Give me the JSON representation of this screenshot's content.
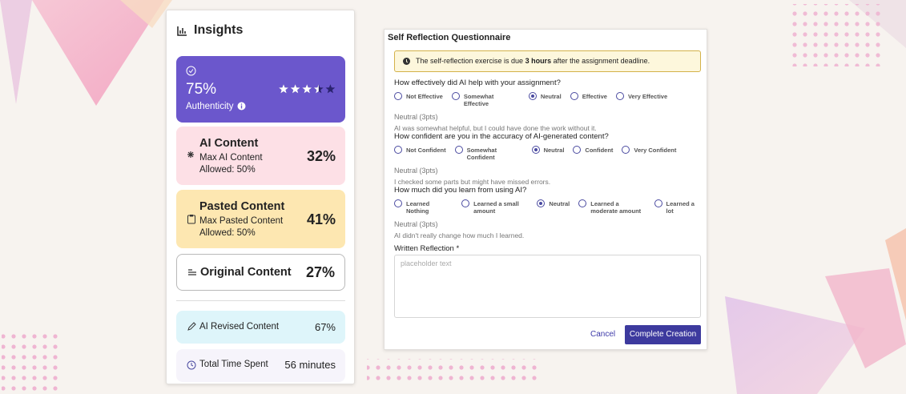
{
  "insights": {
    "title": "Insights",
    "authenticity": {
      "value": "75%",
      "label": "Authenticity",
      "rating": 3.5,
      "rating_max": 5
    },
    "ai_content": {
      "title": "AI Content",
      "note": "Max AI Content Allowed: 50%",
      "value": "32%"
    },
    "pasted_content": {
      "title": "Pasted Content",
      "note": "Max Pasted Content Allowed: 50%",
      "value": "41%"
    },
    "original_content": {
      "title": "Original Content",
      "value": "27%"
    },
    "ai_revised": {
      "title": "AI Revised Content",
      "value": "67%"
    },
    "time_spent": {
      "title": "Total Time Spent",
      "value": "56 minutes"
    }
  },
  "questionnaire": {
    "title": "Self Reflection Questionnaire",
    "notice": {
      "before": "The self-reflection exercise is due ",
      "bold": "3 hours",
      "after": " after the assignment deadline."
    },
    "questions": [
      {
        "label": "How effectively did AI help with your assignment?",
        "options": [
          "Not Effective",
          "Somewhat Effective",
          "Neutral",
          "Effective",
          "Very Effective"
        ],
        "selected": 2,
        "answer": "Neutral (3pts)",
        "explanation": "AI was somewhat helpful, but I could have done the work without it."
      },
      {
        "label": "How confident are you in the accuracy of AI-generated content?",
        "options": [
          "Not Confident",
          "Somewhat Confident",
          "Neutral",
          "Confident",
          "Very Confident"
        ],
        "selected": 2,
        "answer": "Neutral (3pts)",
        "explanation": "I checked some parts but might have missed errors."
      },
      {
        "label": "How much did you learn from using AI?",
        "options": [
          "Learned Nothing",
          "Learned a small amount",
          "Neutral",
          "Learned a moderate amount",
          "Learned a lot"
        ],
        "selected": 2,
        "answer": "Neutral (3pts)",
        "explanation": "AI didn't really change how much I learned."
      }
    ],
    "reflection_label": "Written Reflection *",
    "placeholder": "placeholder text",
    "cancel": "Cancel",
    "submit": "Complete Creation"
  }
}
